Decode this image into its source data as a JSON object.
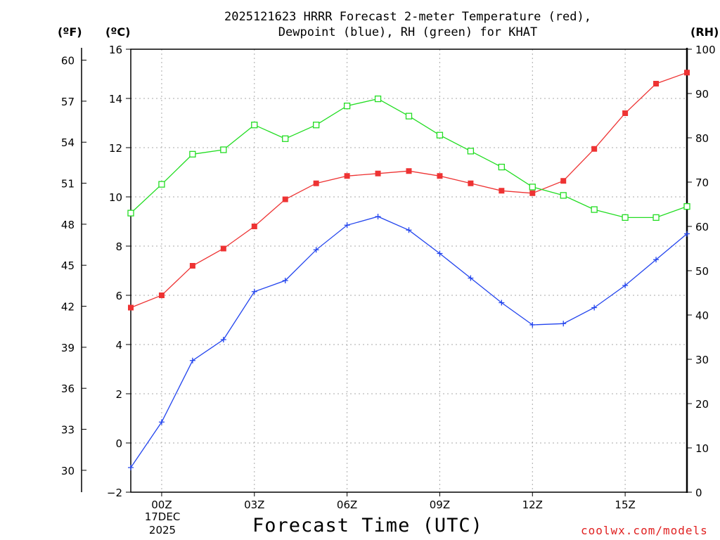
{
  "header": {
    "title_line1": "2025121623 HRRR Forecast 2-meter Temperature (red),",
    "title_line2": "Dewpoint (blue), RH (green) for KHAT"
  },
  "units": {
    "fahrenheit": "(ºF)",
    "celsius": "(ºC)",
    "rh": "(RH)"
  },
  "footer": {
    "xlabel": "Forecast Time (UTC)",
    "credit": "coolwx.com/models",
    "date_day": "17DEC",
    "date_year": "2025"
  },
  "chart_data": {
    "type": "line",
    "title": "2025121623 HRRR Forecast 2-meter Temperature (red), Dewpoint (blue), RH (green) for KHAT",
    "xlabel": "Forecast Time (UTC)",
    "x": [
      -1,
      0,
      1,
      2,
      3,
      4,
      5,
      6,
      7,
      8,
      9,
      10,
      11,
      12,
      13,
      14,
      15,
      16,
      17
    ],
    "x_range": [
      -1,
      17
    ],
    "x_ticks": [
      {
        "x": 0,
        "label": "00Z"
      },
      {
        "x": 3,
        "label": "03Z"
      },
      {
        "x": 6,
        "label": "06Z"
      },
      {
        "x": 9,
        "label": "09Z"
      },
      {
        "x": 12,
        "label": "12Z"
      },
      {
        "x": 15,
        "label": "15Z"
      }
    ],
    "celsius_axis": {
      "range": [
        -2,
        16
      ],
      "ticks": [
        -2,
        0,
        2,
        4,
        6,
        8,
        10,
        12,
        14,
        16
      ]
    },
    "fahrenheit_axis": {
      "range": [
        28.4,
        60.8
      ],
      "ticks": [
        30,
        33,
        36,
        39,
        42,
        45,
        48,
        51,
        54,
        57,
        60
      ]
    },
    "rh_axis": {
      "range": [
        0,
        100
      ],
      "ticks": [
        0,
        10,
        20,
        30,
        40,
        50,
        60,
        70,
        80,
        90,
        100
      ]
    },
    "series": [
      {
        "name": "Temperature",
        "color": "#ee3333",
        "marker": "filled-square",
        "axis": "celsius",
        "values": [
          5.5,
          6.0,
          7.2,
          7.9,
          8.8,
          9.9,
          10.55,
          10.85,
          10.95,
          11.05,
          10.85,
          10.55,
          10.25,
          10.15,
          10.65,
          11.95,
          13.4,
          14.6,
          15.05
        ]
      },
      {
        "name": "Dewpoint",
        "color": "#2244ee",
        "marker": "plus",
        "axis": "celsius",
        "values": [
          -1.0,
          0.85,
          3.35,
          4.2,
          6.15,
          6.6,
          7.85,
          8.85,
          9.2,
          8.65,
          7.7,
          6.7,
          5.7,
          4.8,
          4.85,
          5.5,
          6.4,
          7.45,
          8.5
        ]
      },
      {
        "name": "RH",
        "color": "#22dd22",
        "marker": "open-square",
        "axis": "rh",
        "values": [
          63,
          69.5,
          76.3,
          77.3,
          82.9,
          79.8,
          82.9,
          87.2,
          88.8,
          84.9,
          80.6,
          77.0,
          73.4,
          68.9,
          67.0,
          63.8,
          62.0,
          62.0,
          64.5
        ]
      }
    ]
  }
}
